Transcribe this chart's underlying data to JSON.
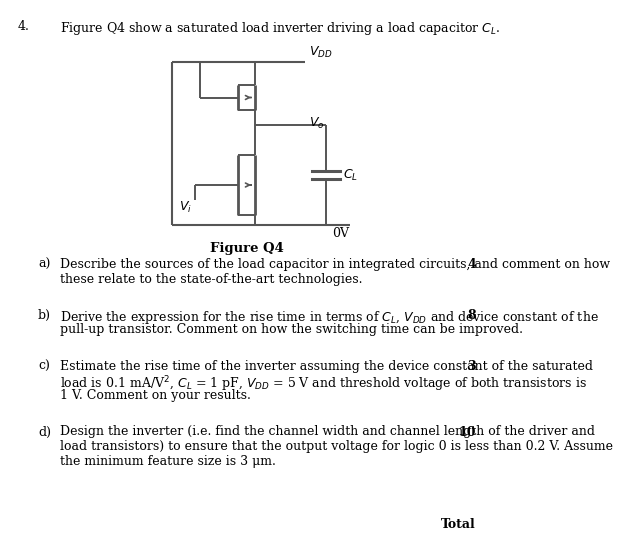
{
  "bg_color": "#ffffff",
  "text_color": "#000000",
  "circuit_color": "#555555",
  "title_num": "4.",
  "title_text": "Figure Q4 show a saturated load inverter driving a load capacitor $C_L$.",
  "figure_label": "Figure Q4",
  "questions": [
    {
      "letter": "a)",
      "text_lines": [
        "Describe the sources of the load capacitor in integrated circuits, and comment on how",
        "these relate to the state-of-the-art technologies."
      ],
      "mark": "4"
    },
    {
      "letter": "b)",
      "text_lines": [
        "Derive the expression for the rise time in terms of $C_L$, $V_{DD}$ and device constant of the",
        "pull-up transistor. Comment on how the switching time can be improved."
      ],
      "mark": "8"
    },
    {
      "letter": "c)",
      "text_lines": [
        "Estimate the rise time of the inverter assuming the device constant of the saturated",
        "load is 0.1 mA/V$^2$, $C_L$ = 1 pF, $V_{DD}$ = 5 V and threshold voltage of both transistors is",
        "1 V. Comment on your results."
      ],
      "mark": "3"
    },
    {
      "letter": "d)",
      "text_lines": [
        "Design the inverter (i.e. find the channel width and channel length of the driver and",
        "load transistors) to ensure that the output voltage for logic 0 is less than 0.2 V. Assume",
        "the minimum feature size is 3 μm."
      ],
      "mark": "10"
    }
  ],
  "total_label": "Total"
}
